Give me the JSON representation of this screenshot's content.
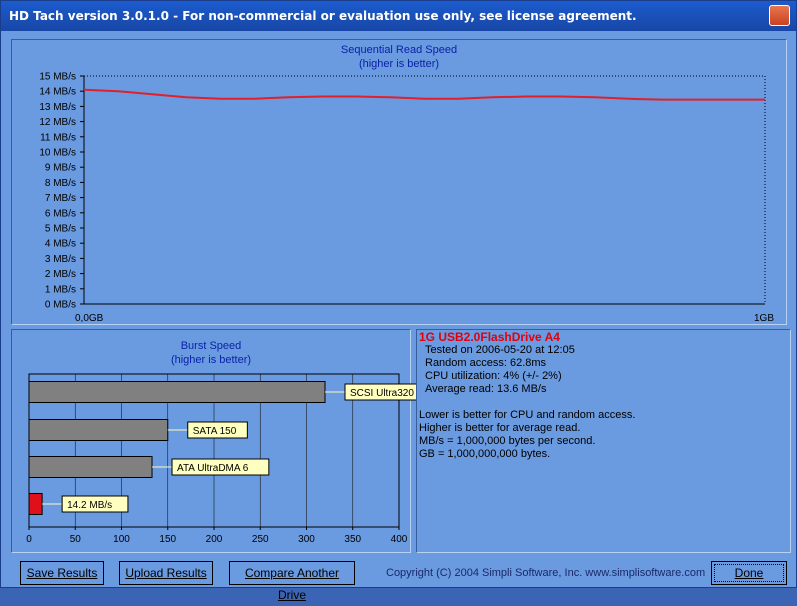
{
  "window": {
    "title": "HD Tach version 3.0.1.0  - For non-commercial or evaluation use only, see license agreement."
  },
  "sequential_chart": {
    "title": "Sequential Read Speed",
    "subtitle": "(higher is better)",
    "y_ticks": [
      "15 MB/s",
      "14 MB/s",
      "13 MB/s",
      "12 MB/s",
      "11 MB/s",
      "10 MB/s",
      "9 MB/s",
      "8 MB/s",
      "7 MB/s",
      "6 MB/s",
      "5 MB/s",
      "4 MB/s",
      "3 MB/s",
      "2 MB/s",
      "1 MB/s",
      "0 MB/s"
    ],
    "x_start": "0,0GB",
    "x_end": "1GB"
  },
  "burst_chart": {
    "title": "Burst Speed",
    "subtitle": "(higher is better)",
    "x_ticks": [
      "0",
      "50",
      "100",
      "150",
      "200",
      "250",
      "300",
      "350",
      "400"
    ]
  },
  "chart_data": [
    {
      "type": "line",
      "title": "Sequential Read Speed",
      "subtitle": "(higher is better)",
      "ylabel": "MB/s",
      "ylim": [
        0,
        15
      ],
      "xlim": [
        0,
        1
      ],
      "series": [
        {
          "color": "#e0202a",
          "x": [
            0,
            0.05,
            0.1,
            0.15,
            0.2,
            0.25,
            0.3,
            0.35,
            0.4,
            0.45,
            0.5,
            0.55,
            0.6,
            0.65,
            0.7,
            0.75,
            0.8,
            0.85,
            0.9,
            0.95,
            1.0
          ],
          "y": [
            14.1,
            14.0,
            13.8,
            13.6,
            13.5,
            13.5,
            13.6,
            13.65,
            13.65,
            13.6,
            13.5,
            13.5,
            13.6,
            13.65,
            13.65,
            13.6,
            13.5,
            13.45,
            13.45,
            13.45,
            13.45
          ]
        }
      ]
    },
    {
      "type": "bar",
      "title": "Burst Speed",
      "subtitle": "(higher is better)",
      "orientation": "horizontal",
      "xlim": [
        0,
        400
      ],
      "categories": [
        "SCSI Ultra320",
        "SATA 150",
        "ATA UltraDMA 6",
        "14.2 MB/s"
      ],
      "values": [
        320,
        150,
        133,
        14.2
      ],
      "colors": [
        "#808080",
        "#808080",
        "#808080",
        "#e0101a"
      ]
    }
  ],
  "drive": {
    "name": "1G USB2.0FlashDrive A4",
    "tested": "Tested on 2006-05-20 at 12:05",
    "random_access": "Random access: 62.8ms",
    "cpu": "CPU utilization: 4% (+/- 2%)",
    "average": "Average read: 13.6 MB/s"
  },
  "notes": [
    "Lower is better for CPU and random access.",
    "Higher is better for average read.",
    "MB/s = 1,000,000 bytes per second.",
    "GB = 1,000,000,000 bytes."
  ],
  "buttons": {
    "save": "Save Results",
    "upload": "Upload Results",
    "compare": "Compare Another Drive",
    "done": "Done"
  },
  "copyright": "Copyright (C) 2004 Simpli Software, Inc. www.simplisoftware.com",
  "colors": {
    "title_blue": "#0b22a8",
    "line_red": "#e0202a",
    "drive_red": "#e2000c",
    "panel": "#6a9ae0"
  }
}
